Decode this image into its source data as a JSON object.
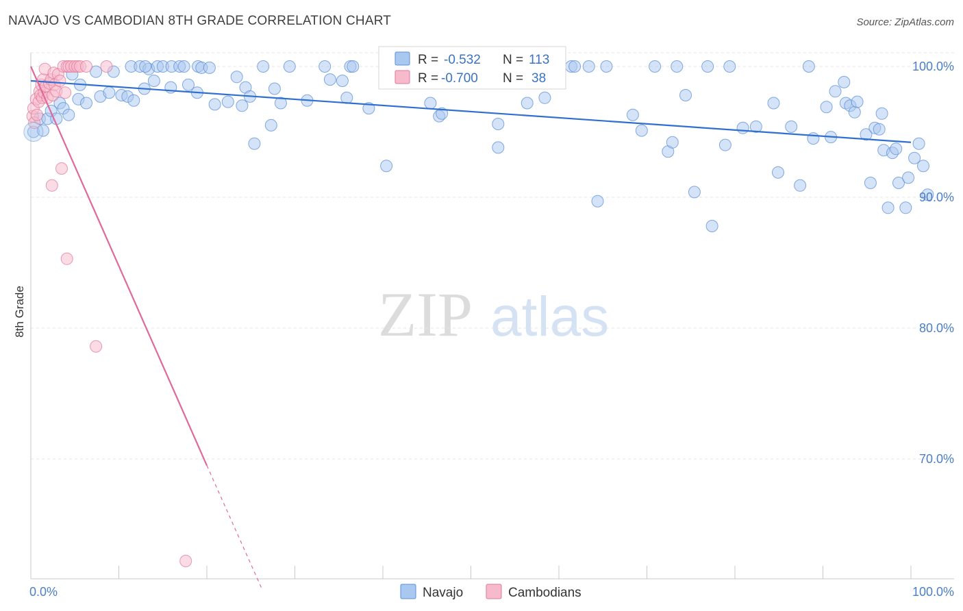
{
  "title": "NAVAJO VS CAMBODIAN 8TH GRADE CORRELATION CHART",
  "source": "Source: ZipAtlas.com",
  "watermark": {
    "zip": "ZIP",
    "atlas": "atlas"
  },
  "legend_box": {
    "rows": [
      {
        "r_label": "R =",
        "r_value": "-0.532",
        "n_label": "N =",
        "n_value": "113",
        "color": "#a9c8f0",
        "stroke": "#5b8fd6"
      },
      {
        "r_label": "R =",
        "r_value": "-0.700",
        "n_label": "N =",
        "n_value": "38",
        "color": "#f7b9cc",
        "stroke": "#e07a9a"
      }
    ]
  },
  "bottom_legend": [
    {
      "label": "Navajo",
      "color": "#a9c8f0",
      "stroke": "#5b8fd6"
    },
    {
      "label": "Cambodians",
      "color": "#f7b9cc",
      "stroke": "#e07a9a"
    }
  ],
  "chart_data": {
    "type": "scatter",
    "ylabel": "8th Grade",
    "xlabel": "",
    "xlim": [
      0,
      100
    ],
    "ylim": [
      60.0,
      101.5
    ],
    "x_tick_labels": [
      "0.0%",
      "100.0%"
    ],
    "y_tick_labels": [
      "100.0%",
      "90.0%",
      "80.0%",
      "70.0%"
    ],
    "y_ticks": [
      100,
      90,
      80,
      70
    ],
    "grid": true,
    "series": [
      {
        "name": "Navajo",
        "color": "#5b8fd6",
        "fill": "#a9c8f0",
        "trend": {
          "x": [
            0,
            100
          ],
          "y": [
            98.9,
            94.2
          ]
        },
        "points": [
          [
            0.3,
            95.0
          ],
          [
            1.0,
            96.0
          ],
          [
            1.4,
            95.1
          ],
          [
            1.9,
            96.0
          ],
          [
            2.3,
            96.6
          ],
          [
            2.9,
            96.0
          ],
          [
            3.3,
            97.2
          ],
          [
            3.7,
            96.8
          ],
          [
            4.3,
            96.3
          ],
          [
            4.7,
            99.4
          ],
          [
            5.4,
            97.5
          ],
          [
            5.6,
            98.6
          ],
          [
            6.3,
            97.2
          ],
          [
            7.4,
            99.6
          ],
          [
            7.9,
            97.7
          ],
          [
            8.9,
            98.0
          ],
          [
            9.4,
            99.6
          ],
          [
            10.3,
            97.8
          ],
          [
            11.0,
            97.7
          ],
          [
            11.4,
            100.0
          ],
          [
            11.7,
            97.4
          ],
          [
            12.4,
            100.0
          ],
          [
            12.9,
            98.3
          ],
          [
            13.4,
            99.8
          ],
          [
            13.0,
            100.0
          ],
          [
            14.0,
            98.9
          ],
          [
            14.4,
            100.0
          ],
          [
            15.0,
            100.0
          ],
          [
            15.9,
            98.4
          ],
          [
            16.0,
            100.0
          ],
          [
            16.9,
            100.0
          ],
          [
            17.4,
            100.0
          ],
          [
            17.9,
            98.6
          ],
          [
            18.9,
            98.0
          ],
          [
            19.0,
            100.0
          ],
          [
            19.4,
            99.9
          ],
          [
            20.3,
            99.9
          ],
          [
            20.9,
            97.1
          ],
          [
            22.4,
            97.3
          ],
          [
            23.4,
            99.2
          ],
          [
            24.0,
            97.0
          ],
          [
            24.4,
            98.4
          ],
          [
            24.9,
            97.7
          ],
          [
            25.4,
            94.1
          ],
          [
            26.4,
            100.0
          ],
          [
            27.3,
            95.5
          ],
          [
            27.7,
            98.3
          ],
          [
            28.4,
            97.2
          ],
          [
            29.4,
            100.0
          ],
          [
            31.4,
            97.4
          ],
          [
            33.4,
            100.0
          ],
          [
            34.0,
            99.0
          ],
          [
            35.4,
            98.9
          ],
          [
            35.9,
            97.6
          ],
          [
            36.3,
            100.0
          ],
          [
            36.6,
            100.0
          ],
          [
            38.4,
            96.8
          ],
          [
            40.4,
            92.4
          ],
          [
            43.0,
            100.0
          ],
          [
            45.4,
            97.2
          ],
          [
            46.4,
            96.2
          ],
          [
            46.7,
            96.4
          ],
          [
            51.9,
            100.0
          ],
          [
            53.1,
            95.6
          ],
          [
            53.1,
            93.8
          ],
          [
            56.4,
            97.2
          ],
          [
            58.4,
            97.6
          ],
          [
            61.4,
            100.0
          ],
          [
            61.8,
            100.0
          ],
          [
            63.4,
            100.0
          ],
          [
            64.4,
            89.7
          ],
          [
            65.4,
            100.0
          ],
          [
            68.4,
            96.3
          ],
          [
            69.4,
            95.1
          ],
          [
            70.9,
            100.0
          ],
          [
            72.4,
            93.5
          ],
          [
            72.9,
            94.2
          ],
          [
            73.4,
            100.0
          ],
          [
            74.4,
            97.8
          ],
          [
            75.4,
            90.4
          ],
          [
            77.4,
            87.8
          ],
          [
            76.9,
            100.0
          ],
          [
            78.9,
            94.0
          ],
          [
            79.4,
            100.0
          ],
          [
            80.9,
            95.3
          ],
          [
            82.4,
            95.4
          ],
          [
            84.4,
            97.2
          ],
          [
            84.9,
            91.9
          ],
          [
            86.4,
            95.4
          ],
          [
            87.4,
            90.9
          ],
          [
            88.4,
            100.0
          ],
          [
            88.9,
            94.5
          ],
          [
            90.4,
            96.9
          ],
          [
            90.9,
            94.6
          ],
          [
            91.4,
            98.1
          ],
          [
            92.4,
            98.8
          ],
          [
            92.6,
            97.2
          ],
          [
            93.1,
            97.0
          ],
          [
            93.6,
            96.5
          ],
          [
            93.9,
            97.3
          ],
          [
            94.9,
            94.8
          ],
          [
            95.4,
            91.1
          ],
          [
            95.9,
            95.3
          ],
          [
            96.4,
            95.2
          ],
          [
            96.7,
            96.4
          ],
          [
            96.9,
            93.6
          ],
          [
            97.4,
            89.2
          ],
          [
            97.9,
            93.4
          ],
          [
            98.3,
            93.7
          ],
          [
            98.6,
            91.1
          ],
          [
            99.4,
            89.2
          ],
          [
            99.7,
            91.5
          ],
          [
            100.4,
            93.0
          ],
          [
            101.4,
            92.4
          ],
          [
            101.9,
            90.2
          ],
          [
            100.9,
            94.1
          ]
        ]
      },
      {
        "name": "Cambodians",
        "color": "#e07a9a",
        "fill": "#f7b9cc",
        "trend": {
          "x": [
            0,
            20
          ],
          "y": [
            100.0,
            69.5
          ]
        },
        "trend_dashed": {
          "x": [
            20,
            26.3
          ],
          "y": [
            69.5,
            60.0
          ]
        },
        "points": [
          [
            0.2,
            96.2
          ],
          [
            0.3,
            96.8
          ],
          [
            0.4,
            95.7
          ],
          [
            0.6,
            97.5
          ],
          [
            0.7,
            96.3
          ],
          [
            0.9,
            97.3
          ],
          [
            1.0,
            98.1
          ],
          [
            1.1,
            97.8
          ],
          [
            1.2,
            98.6
          ],
          [
            1.3,
            97.6
          ],
          [
            1.4,
            99.0
          ],
          [
            1.5,
            98.0
          ],
          [
            1.6,
            99.8
          ],
          [
            1.7,
            98.5
          ],
          [
            1.9,
            97.6
          ],
          [
            2.1,
            98.7
          ],
          [
            2.3,
            99.0
          ],
          [
            2.5,
            97.8
          ],
          [
            2.6,
            99.5
          ],
          [
            2.7,
            98.6
          ],
          [
            2.9,
            98.1
          ],
          [
            3.1,
            99.4
          ],
          [
            3.3,
            98.9
          ],
          [
            3.5,
            92.2
          ],
          [
            3.7,
            100.0
          ],
          [
            3.9,
            98.0
          ],
          [
            4.1,
            100.0
          ],
          [
            4.3,
            100.0
          ],
          [
            4.6,
            100.0
          ],
          [
            5.0,
            100.0
          ],
          [
            5.3,
            100.0
          ],
          [
            5.6,
            100.0
          ],
          [
            6.3,
            100.0
          ],
          [
            8.6,
            100.0
          ],
          [
            2.4,
            90.9
          ],
          [
            4.1,
            85.3
          ],
          [
            7.4,
            78.6
          ],
          [
            17.6,
            62.2
          ]
        ]
      }
    ]
  }
}
